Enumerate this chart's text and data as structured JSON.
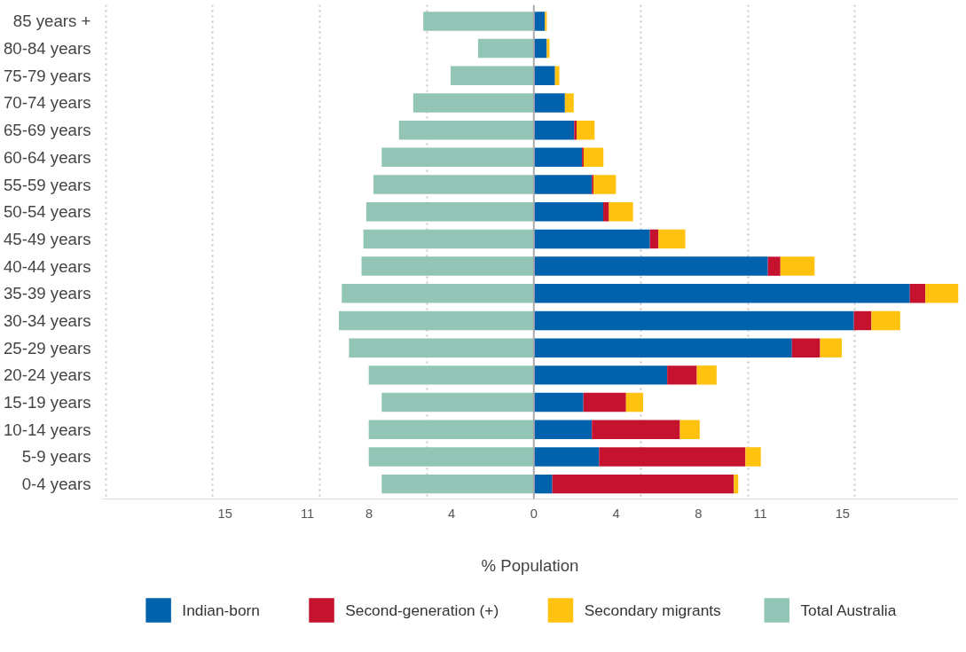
{
  "chart_data": {
    "type": "bar",
    "orientation": "horizontal",
    "stacked": true,
    "xlabel": "% Population",
    "categories": [
      "85 years +",
      "80-84 years",
      "75-79 years",
      "70-74 years",
      "65-69 years",
      "60-64 years",
      "55-59 years",
      "50-54 years",
      "45-49 years",
      "40-44 years",
      "35-39 years",
      "30-34 years",
      "25-29 years",
      "20-24 years",
      "15-19 years",
      "10-14 years",
      "5-9 years",
      "0-4 years"
    ],
    "series": [
      {
        "name": "Indian-born",
        "color": "#0062ad",
        "values": [
          0.54,
          0.63,
          1.03,
          1.51,
          1.96,
          2.34,
          2.82,
          3.37,
          5.64,
          11.37,
          18.27,
          15.55,
          12.54,
          6.48,
          2.41,
          2.82,
          3.17,
          0.9
        ]
      },
      {
        "name": "Second-generation (+)",
        "color": "#c4122f",
        "values": [
          0,
          0,
          0,
          0,
          0.12,
          0.08,
          0.08,
          0.28,
          0.41,
          0.61,
          0.75,
          0.85,
          1.37,
          1.44,
          2.07,
          4.28,
          7.11,
          8.82
        ]
      },
      {
        "name": "Secondary migrants",
        "color": "#ffc20e",
        "values": [
          0.09,
          0.13,
          0.21,
          0.43,
          0.87,
          0.96,
          1.09,
          1.17,
          1.31,
          1.66,
          1.61,
          1.4,
          1.05,
          0.96,
          0.83,
          0.96,
          0.75,
          0.21
        ]
      },
      {
        "name": "Total Australia",
        "color": "#92c5b5",
        "values": [
          -5.37,
          -2.71,
          -4.04,
          -5.86,
          -6.55,
          -7.39,
          -7.79,
          -8.14,
          -8.28,
          -8.37,
          -9.33,
          -9.47,
          -8.98,
          -8.02,
          -7.39,
          -8.02,
          -8.02,
          -7.39
        ]
      }
    ],
    "xlim": [
      -21.0,
      20.63
    ],
    "xticks": [
      {
        "value": -20.8,
        "label": null
      },
      {
        "value": -15,
        "label": "15"
      },
      {
        "value": -15.6,
        "label": null
      },
      {
        "value": -11,
        "label": "11"
      },
      {
        "value": -10.4,
        "label": null
      },
      {
        "value": -8,
        "label": "8"
      },
      {
        "value": -5.2,
        "label": null
      },
      {
        "value": -4,
        "label": "4"
      },
      0,
      4,
      {
        "value": 5.2,
        "label": null
      },
      8,
      {
        "value": 10.4,
        "label": null
      },
      11,
      {
        "value": 15.6,
        "label": null
      },
      15
    ],
    "grid": "x",
    "legend": "bottom",
    "ref_lines": [
      {
        "axis": "x",
        "value": 0,
        "color": "#aaaaaa"
      }
    ]
  }
}
